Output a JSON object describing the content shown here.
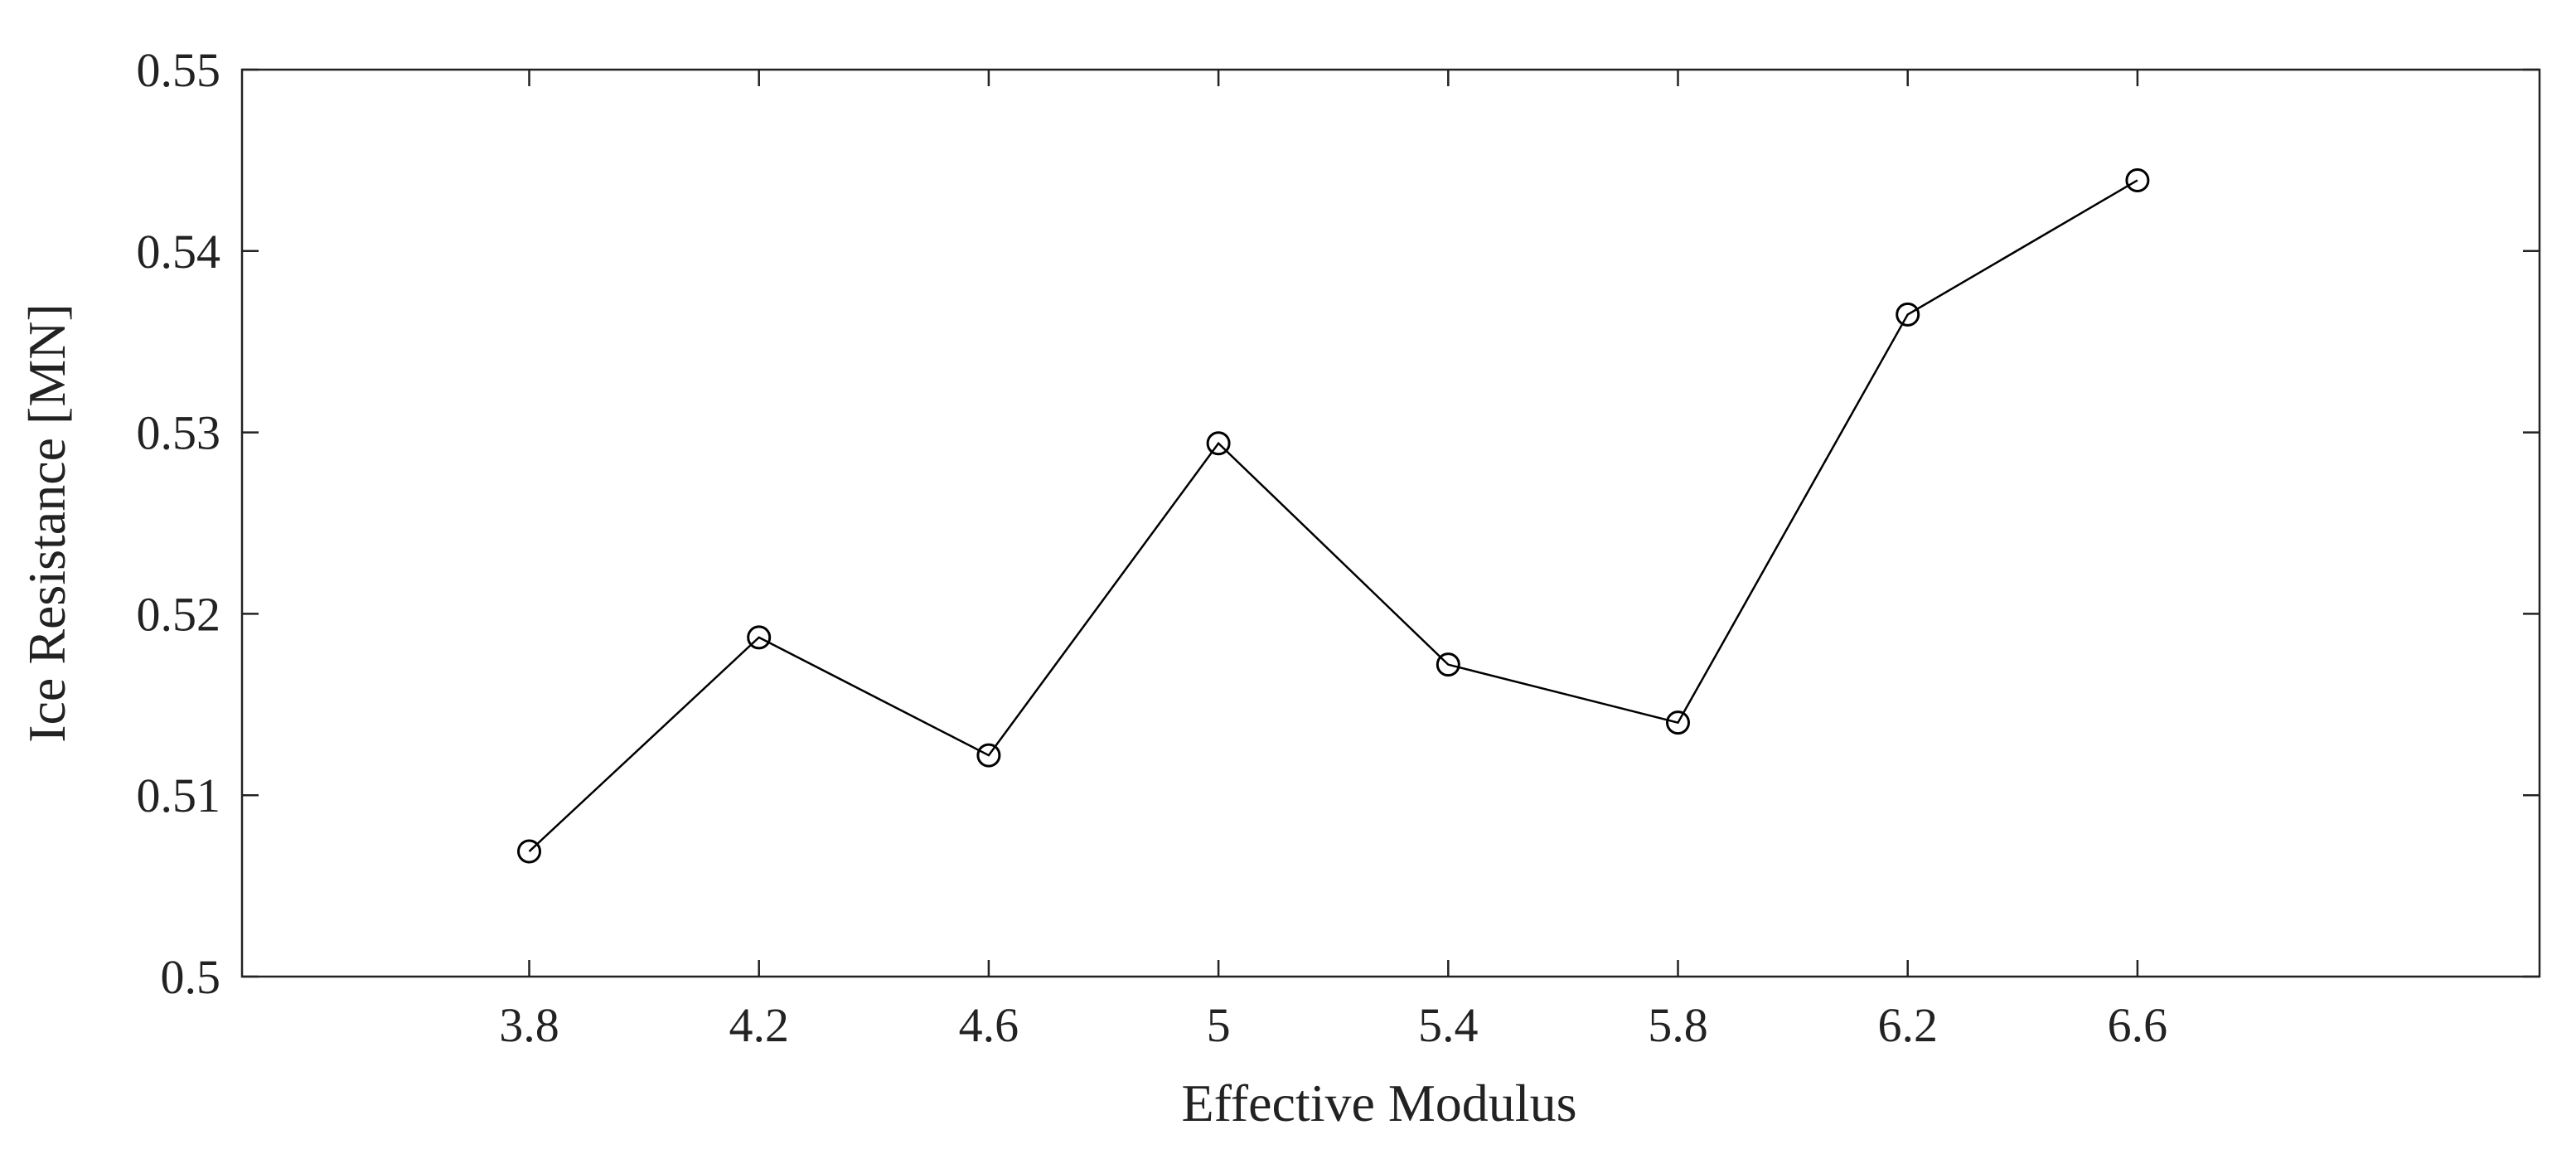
{
  "chart_data": {
    "type": "line",
    "title": "",
    "xlabel": "Effective Modulus",
    "ylabel": "Ice Resistance [MN]",
    "xlim": [
      3.3,
      7.3
    ],
    "ylim": [
      0.5,
      0.55
    ],
    "xticks": [
      3.8,
      4.2,
      4.6,
      5,
      5.4,
      5.8,
      6.2,
      6.6
    ],
    "xtick_labels": [
      "3.8",
      "4.2",
      "4.6",
      "5",
      "5.4",
      "5.8",
      "6.2",
      "6.6"
    ],
    "yticks": [
      0.5,
      0.51,
      0.52,
      0.53,
      0.54,
      0.55
    ],
    "ytick_labels": [
      "0.5",
      "0.51",
      "0.52",
      "0.53",
      "0.54",
      "0.55"
    ],
    "grid": false,
    "series": [
      {
        "x": [
          3.8,
          4.2,
          4.6,
          5.0,
          5.4,
          5.8,
          6.2,
          6.6
        ],
        "y": [
          0.5069,
          0.5187,
          0.5122,
          0.5294,
          0.5172,
          0.514,
          0.5365,
          0.5439
        ],
        "marker": "circle",
        "color": "#000000"
      }
    ]
  }
}
